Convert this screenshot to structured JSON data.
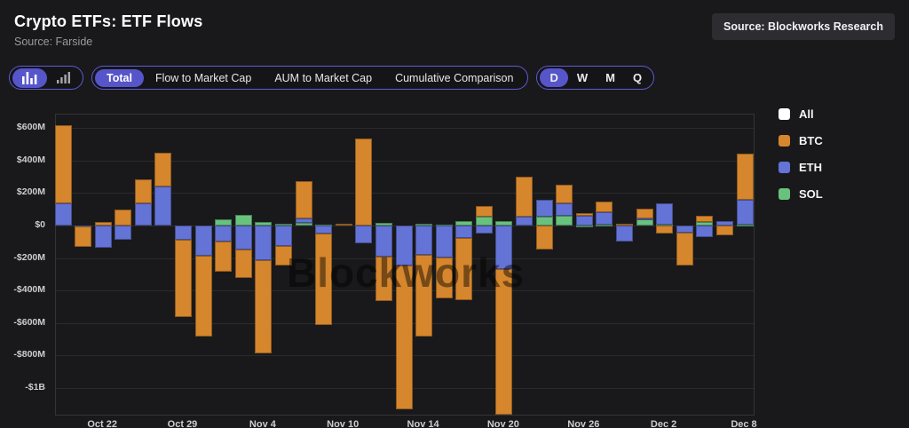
{
  "header": {
    "title": "Crypto ETFs: ETF Flows",
    "subtitle": "Source: Farside",
    "source_badge": "Source: Blockworks Research"
  },
  "controls": {
    "chart_type_icons": [
      {
        "name": "bar-chart-icon",
        "selected": true
      },
      {
        "name": "mini-bar-chart-icon",
        "selected": false
      }
    ],
    "tabs": [
      {
        "label": "Total",
        "selected": true
      },
      {
        "label": "Flow to Market Cap",
        "selected": false
      },
      {
        "label": "AUM to Market Cap",
        "selected": false
      },
      {
        "label": "Cumulative Comparison",
        "selected": false
      }
    ],
    "periods": [
      {
        "label": "D",
        "selected": true
      },
      {
        "label": "W",
        "selected": false
      },
      {
        "label": "M",
        "selected": false
      },
      {
        "label": "Q",
        "selected": false
      }
    ]
  },
  "legend": [
    {
      "label": "All",
      "color": "#FFFFFF"
    },
    {
      "label": "BTC",
      "color": "#D6862C"
    },
    {
      "label": "ETH",
      "color": "#6473D6"
    },
    {
      "label": "SOL",
      "color": "#68C27E"
    }
  ],
  "watermark": "Blockworks",
  "colors": {
    "accent_purple": "#5655C9",
    "btc_orange": "#D6862C",
    "eth_blue": "#6473D6",
    "sol_green": "#68C27E",
    "background": "#19191B"
  },
  "chart_data": {
    "type": "bar",
    "stacked": true,
    "unit": "USD millions (daily net ETF flow)",
    "title": "Crypto ETFs: ETF Flows",
    "grid": true,
    "legend_position": "right",
    "ylim": [
      -1165,
      685
    ],
    "y_ticks": [
      {
        "label": "$600M",
        "value": 600
      },
      {
        "label": "$400M",
        "value": 400
      },
      {
        "label": "$200M",
        "value": 200
      },
      {
        "label": "$0",
        "value": 0
      },
      {
        "label": "-$200M",
        "value": -200
      },
      {
        "label": "-$400M",
        "value": -400
      },
      {
        "label": "-$600M",
        "value": -600
      },
      {
        "label": "-$800M",
        "value": -800
      },
      {
        "label": "-$1B",
        "value": -1000
      }
    ],
    "x_tick_labels": [
      "Oct 22",
      "Oct 29",
      "Nov 4",
      "Nov 10",
      "Nov 14",
      "Nov 20",
      "Nov 26",
      "Dec 2",
      "Dec 8"
    ],
    "x_tick_bar_indices": [
      2,
      6,
      10,
      14,
      18,
      22,
      26,
      30,
      34
    ],
    "bar_count": 35,
    "stack_order_from_zero": [
      "SOL",
      "ETH",
      "BTC"
    ],
    "series": [
      {
        "name": "BTC",
        "color": "#D6862C",
        "values": [
          485,
          -125,
          22,
          99,
          148,
          210,
          -480,
          -498,
          -189,
          -177,
          -575,
          -125,
          228,
          -562,
          13,
          537,
          -271,
          -885,
          -504,
          -253,
          -384,
          67,
          -898,
          250,
          -146,
          115,
          16,
          70,
          10,
          58,
          -50,
          -203,
          40,
          -60,
          285
        ]
      },
      {
        "name": "ETH",
        "color": "#6473D6",
        "values": [
          135,
          -5,
          -139,
          -85,
          135,
          240,
          -85,
          -185,
          -97,
          -145,
          -213,
          -123,
          28,
          -48,
          0,
          -111,
          -193,
          -248,
          -179,
          -198,
          -75,
          -48,
          -267,
          53,
          104,
          80,
          57,
          76,
          -97,
          4,
          135,
          -42,
          -73,
          30,
          150
        ]
      },
      {
        "name": "SOL",
        "color": "#68C27E",
        "values": [
          0,
          0,
          0,
          0,
          0,
          0,
          0,
          0,
          38,
          68,
          20,
          13,
          16,
          6,
          0,
          0,
          16,
          0,
          10,
          5,
          26,
          55,
          26,
          0,
          53,
          59,
          2,
          4,
          0,
          40,
          4,
          0,
          22,
          0,
          7
        ]
      }
    ]
  }
}
